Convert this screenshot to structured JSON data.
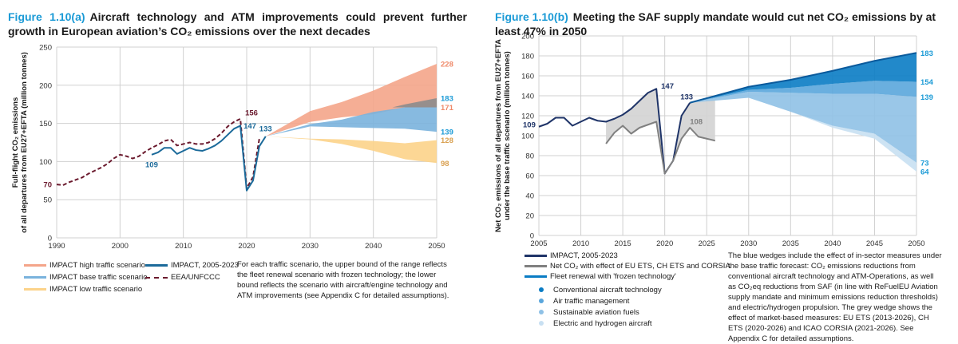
{
  "figure_a": {
    "fig_label": "Figure 1.10(a)",
    "title": "Aircraft technology and ATM improvements could prevent further growth in European aviation’s CO₂ emissions over the next decades",
    "legend": [
      {
        "label": "IMPACT high traffic scenario",
        "color": "#f4a58a",
        "style": "line"
      },
      {
        "label": "IMPACT base traffic scenario",
        "color": "#7ab3dd",
        "style": "line"
      },
      {
        "label": "IMPACT low traffic scenario",
        "color": "#fcd38a",
        "style": "line"
      },
      {
        "label": "IMPACT, 2005-2023",
        "color": "#1b6a9a",
        "style": "line"
      },
      {
        "label": "EEA/UNFCCC",
        "color": "#6b1a2e",
        "style": "dashed"
      }
    ],
    "note": "For each traffic scenario, the upper bound of the range reflects the fleet renewal scenario with frozen technology; the lower bound reflects the scenario with aircraft/engine technology and ATM improvements (see Appendix C for detailed assumptions)."
  },
  "figure_b": {
    "fig_label": "Figure 1.10(b)",
    "title": "Meeting the SAF supply mandate would cut net CO₂ emissions by at least 47% in 2050",
    "legend": [
      {
        "label": "IMPACT, 2005-2023",
        "color": "#1f3468",
        "style": "line"
      },
      {
        "label": "Net CO₂ with effect of EU ETS, CH ETS and CORSIA",
        "color": "#808080",
        "style": "line"
      },
      {
        "label": "Fleet renewal with 'frozen technology'",
        "color": "#0a7cc4",
        "style": "line"
      },
      {
        "label": "Conventional aircraft technology",
        "color": "#0a7cc4",
        "style": "dot"
      },
      {
        "label": "Air traffic management",
        "color": "#5aa6dc",
        "style": "dot"
      },
      {
        "label": "Sustainable aviation fuels",
        "color": "#8fc1e6",
        "style": "dot"
      },
      {
        "label": "Electric and hydrogen aircraft",
        "color": "#c8e0f2",
        "style": "dot"
      }
    ],
    "note": "The blue wedges include the effect of in-sector measures under the base traffic forecast: CO₂ emissions reductions from conventional aircraft technology and ATM-Operations, as well as CO₂eq reductions from SAF (in line with ReFuelEU Aviation supply mandate and minimum emissions reduction thresholds) and electric/hydrogen propulsion. The grey wedge shows the effect of market-based measures: EU ETS (2013-2026), CH ETS (2020-2026) and ICAO CORSIA (2021-2026). See Appendix C for detailed assumptions."
  },
  "chart_data": [
    {
      "type": "area",
      "title": "Aircraft technology and ATM improvements could prevent further growth in European aviation’s CO₂ emissions over the next decades",
      "xlabel": "",
      "ylabel": "Full-flight CO₂ emissions of all departures from EU27+EFTA (million tonnes)",
      "xlim": [
        1990,
        2050
      ],
      "ylim": [
        0,
        250
      ],
      "xticks": [
        1990,
        2000,
        2010,
        2020,
        2030,
        2040,
        2050
      ],
      "yticks": [
        0,
        50,
        100,
        150,
        200,
        250
      ],
      "grid": true,
      "series": [
        {
          "name": "EEA/UNFCCC",
          "kind": "line",
          "style": "dashed",
          "color": "#6b1a2e",
          "x": [
            1990,
            1991,
            1992,
            1993,
            1994,
            1995,
            1996,
            1997,
            1998,
            1999,
            2000,
            2001,
            2002,
            2003,
            2004,
            2005,
            2006,
            2007,
            2008,
            2009,
            2010,
            2011,
            2012,
            2013,
            2014,
            2015,
            2016,
            2017,
            2018,
            2019,
            2020,
            2021,
            2022
          ],
          "y": [
            70,
            69,
            73,
            76,
            79,
            84,
            88,
            92,
            97,
            104,
            109,
            107,
            104,
            107,
            113,
            118,
            122,
            127,
            129,
            121,
            123,
            125,
            123,
            123,
            125,
            130,
            137,
            146,
            152,
            156,
            65,
            80,
            130
          ]
        },
        {
          "name": "IMPACT, 2005-2023",
          "kind": "line",
          "style": "solid",
          "color": "#1b6a9a",
          "x": [
            2005,
            2006,
            2007,
            2008,
            2009,
            2010,
            2011,
            2012,
            2013,
            2014,
            2015,
            2016,
            2017,
            2018,
            2019,
            2020,
            2021,
            2022,
            2023
          ],
          "y": [
            109,
            112,
            118,
            118,
            110,
            114,
            118,
            115,
            114,
            117,
            121,
            127,
            135,
            143,
            147,
            62,
            75,
            120,
            133
          ]
        },
        {
          "name": "IMPACT high traffic scenario",
          "kind": "band",
          "color": "#f4a58a",
          "x": [
            2023,
            2030,
            2035,
            2040,
            2045,
            2050
          ],
          "upper": [
            133,
            166,
            178,
            193,
            211,
            228
          ],
          "lower": [
            133,
            152,
            158,
            162,
            171,
            171
          ]
        },
        {
          "name": "Frozen-tech overlap (high/base)",
          "kind": "band",
          "color": "#8c8c8c",
          "x": [
            2043,
            2045,
            2050
          ],
          "upper": [
            171,
            175,
            183
          ],
          "lower": [
            171,
            171,
            171
          ]
        },
        {
          "name": "IMPACT base traffic scenario",
          "kind": "band",
          "color": "#7ab3dd",
          "x": [
            2023,
            2030,
            2035,
            2040,
            2045,
            2050
          ],
          "upper": [
            133,
            149,
            155,
            165,
            171,
            171
          ],
          "lower": [
            133,
            146,
            145,
            144,
            143,
            139
          ]
        },
        {
          "name": "IMPACT low traffic scenario",
          "kind": "band",
          "color": "#fcd38a",
          "x": [
            2023,
            2030,
            2035,
            2040,
            2045,
            2050
          ],
          "upper": [
            133,
            130,
            129,
            127,
            124,
            128
          ],
          "lower": [
            133,
            129,
            123,
            114,
            103,
            98
          ]
        }
      ],
      "annotations": [
        {
          "text": "70",
          "x": 1990,
          "y": 70,
          "color": "#6b1a2e"
        },
        {
          "text": "109",
          "x": 2005,
          "y": 109,
          "color": "#1b6a9a"
        },
        {
          "text": "156",
          "x": 2019,
          "y": 156,
          "color": "#6b1a2e"
        },
        {
          "text": "147",
          "x": 2019,
          "y": 147,
          "color": "#1b6a9a"
        },
        {
          "text": "133",
          "x": 2023,
          "y": 133,
          "color": "#1b6a9a"
        },
        {
          "text": "228",
          "x": 2050,
          "y": 228,
          "color": "#ef8a6a"
        },
        {
          "text": "183",
          "x": 2050,
          "y": 183,
          "color": "#1a9ad6"
        },
        {
          "text": "171",
          "x": 2050,
          "y": 171,
          "color": "#ef8a6a"
        },
        {
          "text": "139",
          "x": 2050,
          "y": 139,
          "color": "#1a9ad6"
        },
        {
          "text": "128",
          "x": 2050,
          "y": 128,
          "color": "#d9a050"
        },
        {
          "text": "98",
          "x": 2050,
          "y": 98,
          "color": "#d9a050"
        }
      ],
      "legend_position": "bottom"
    },
    {
      "type": "area",
      "title": "Meeting the SAF supply mandate would cut net CO₂ emissions by at least 47% in 2050",
      "xlabel": "",
      "ylabel": "Net CO₂ emissions of all departures from EU27+EFTA under the base traffic scenario (million tonnes)",
      "xlim": [
        2005,
        2050
      ],
      "ylim": [
        0,
        200
      ],
      "xticks": [
        2005,
        2010,
        2015,
        2020,
        2025,
        2030,
        2035,
        2040,
        2045,
        2050
      ],
      "yticks": [
        0,
        20,
        40,
        60,
        80,
        100,
        120,
        140,
        160,
        180,
        200
      ],
      "grid": true,
      "series": [
        {
          "name": "Grey wedge (market-based measures)",
          "kind": "band",
          "color": "#d3d3d3",
          "x": [
            2013,
            2014,
            2015,
            2016,
            2017,
            2018,
            2019,
            2020,
            2021,
            2022,
            2023,
            2024,
            2025,
            2026
          ],
          "upper": [
            114,
            117,
            121,
            127,
            135,
            143,
            147,
            62,
            75,
            120,
            133,
            134,
            135,
            136
          ],
          "lower": [
            92,
            103,
            110,
            102,
            108,
            111,
            114,
            62,
            75,
            97,
            108,
            99,
            97,
            95
          ]
        },
        {
          "name": "Electric and hydrogen aircraft",
          "kind": "band",
          "color": "#c8e0f2",
          "x": [
            2023,
            2030,
            2035,
            2040,
            2045,
            2050
          ],
          "upper": [
            133,
            138,
            124,
            110,
            102,
            73
          ],
          "lower": [
            133,
            138,
            124,
            108,
            97,
            64
          ]
        },
        {
          "name": "Sustainable aviation fuels",
          "kind": "band",
          "color": "#8fc1e6",
          "x": [
            2023,
            2030,
            2035,
            2040,
            2045,
            2050
          ],
          "upper": [
            133,
            144,
            143,
            142,
            142,
            139
          ],
          "lower": [
            133,
            138,
            124,
            110,
            102,
            73
          ]
        },
        {
          "name": "Air traffic management",
          "kind": "band",
          "color": "#5aa6dc",
          "x": [
            2023,
            2030,
            2035,
            2040,
            2045,
            2050
          ],
          "upper": [
            133,
            146,
            148,
            152,
            155,
            154
          ],
          "lower": [
            133,
            144,
            143,
            142,
            142,
            139
          ]
        },
        {
          "name": "Conventional aircraft technology",
          "kind": "band",
          "color": "#0a7cc4",
          "x": [
            2023,
            2030,
            2035,
            2040,
            2045,
            2050
          ],
          "upper": [
            133,
            149,
            156,
            165,
            175,
            183
          ],
          "lower": [
            133,
            146,
            148,
            152,
            155,
            154
          ]
        },
        {
          "name": "Fleet renewal with 'frozen technology'",
          "kind": "line",
          "style": "solid",
          "color": "#0a5a9c",
          "x": [
            2023,
            2030,
            2035,
            2040,
            2045,
            2050
          ],
          "y": [
            133,
            149,
            156,
            165,
            175,
            183
          ]
        },
        {
          "name": "IMPACT, 2005-2023",
          "kind": "line",
          "style": "solid",
          "color": "#1f3468",
          "x": [
            2005,
            2006,
            2007,
            2008,
            2009,
            2010,
            2011,
            2012,
            2013,
            2014,
            2015,
            2016,
            2017,
            2018,
            2019,
            2020,
            2021,
            2022,
            2023
          ],
          "y": [
            109,
            112,
            118,
            118,
            110,
            114,
            118,
            115,
            114,
            117,
            121,
            127,
            135,
            143,
            147,
            62,
            75,
            120,
            133
          ]
        },
        {
          "name": "Net CO₂ with effect of EU ETS, CH ETS and CORSIA",
          "kind": "line",
          "style": "solid",
          "color": "#808080",
          "x": [
            2013,
            2014,
            2015,
            2016,
            2017,
            2018,
            2019,
            2020,
            2021,
            2022,
            2023,
            2024,
            2025,
            2026
          ],
          "y": [
            92,
            103,
            110,
            102,
            108,
            111,
            114,
            62,
            75,
            97,
            108,
            99,
            97,
            95
          ]
        }
      ],
      "annotations": [
        {
          "text": "109",
          "x": 2005,
          "y": 109,
          "color": "#1f3468"
        },
        {
          "text": "147",
          "x": 2019,
          "y": 147,
          "color": "#1f3468"
        },
        {
          "text": "133",
          "x": 2023,
          "y": 133,
          "color": "#1f3468"
        },
        {
          "text": "108",
          "x": 2023,
          "y": 108,
          "color": "#808080"
        },
        {
          "text": "183",
          "x": 2050,
          "y": 183,
          "color": "#1a9ad6"
        },
        {
          "text": "154",
          "x": 2050,
          "y": 154,
          "color": "#1a9ad6"
        },
        {
          "text": "139",
          "x": 2050,
          "y": 139,
          "color": "#1a9ad6"
        },
        {
          "text": "73",
          "x": 2050,
          "y": 73,
          "color": "#1a9ad6"
        },
        {
          "text": "64",
          "x": 2050,
          "y": 64,
          "color": "#1a9ad6"
        }
      ],
      "legend_position": "bottom"
    }
  ]
}
